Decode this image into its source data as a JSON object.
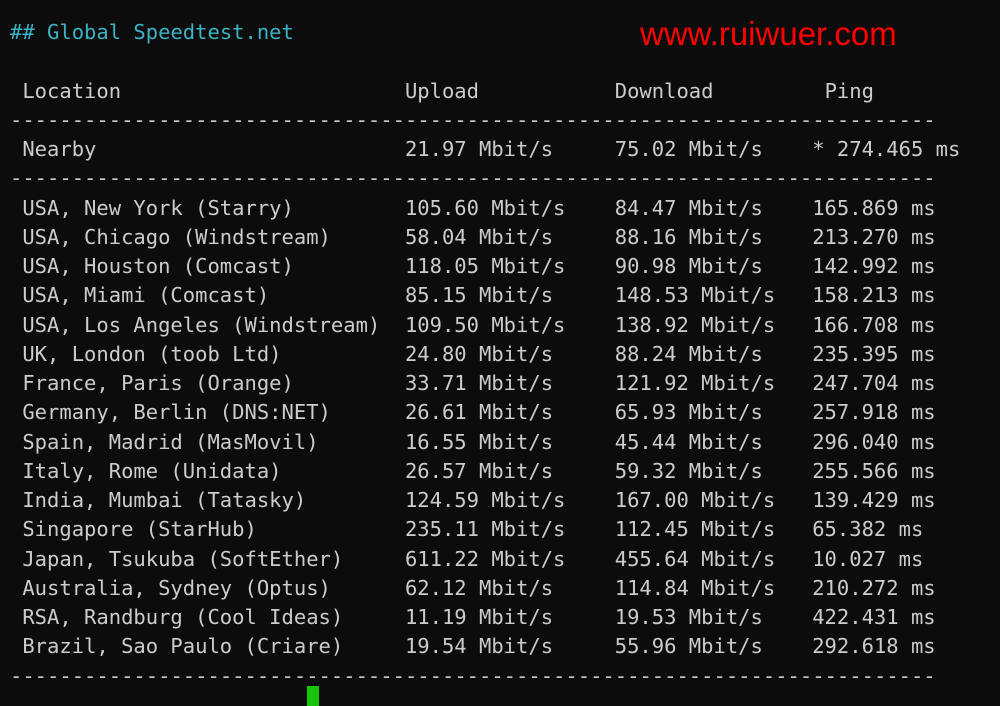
{
  "title": "## Global Speedtest.net",
  "headers": {
    "location": "Location",
    "upload": "Upload",
    "download": "Download",
    "ping": "Ping"
  },
  "separator": "---------------------------------------------------------------------------",
  "nearby": {
    "location": "Nearby",
    "upload": "21.97 Mbit/s",
    "download": "75.02 Mbit/s",
    "ping": "* 274.465 ms"
  },
  "rows": [
    {
      "location": "USA, New York (Starry)",
      "upload": "105.60 Mbit/s",
      "download": "84.47 Mbit/s",
      "ping": "165.869 ms"
    },
    {
      "location": "USA, Chicago (Windstream)",
      "upload": "58.04 Mbit/s",
      "download": "88.16 Mbit/s",
      "ping": "213.270 ms"
    },
    {
      "location": "USA, Houston (Comcast)",
      "upload": "118.05 Mbit/s",
      "download": "90.98 Mbit/s",
      "ping": "142.992 ms"
    },
    {
      "location": "USA, Miami (Comcast)",
      "upload": "85.15 Mbit/s",
      "download": "148.53 Mbit/s",
      "ping": "158.213 ms"
    },
    {
      "location": "USA, Los Angeles (Windstream)",
      "upload": "109.50 Mbit/s",
      "download": "138.92 Mbit/s",
      "ping": "166.708 ms"
    },
    {
      "location": "UK, London (toob Ltd)",
      "upload": "24.80 Mbit/s",
      "download": "88.24 Mbit/s",
      "ping": "235.395 ms"
    },
    {
      "location": "France, Paris (Orange)",
      "upload": "33.71 Mbit/s",
      "download": "121.92 Mbit/s",
      "ping": "247.704 ms"
    },
    {
      "location": "Germany, Berlin (DNS:NET)",
      "upload": "26.61 Mbit/s",
      "download": "65.93 Mbit/s",
      "ping": "257.918 ms"
    },
    {
      "location": "Spain, Madrid (MasMovil)",
      "upload": "16.55 Mbit/s",
      "download": "45.44 Mbit/s",
      "ping": "296.040 ms"
    },
    {
      "location": "Italy, Rome (Unidata)",
      "upload": "26.57 Mbit/s",
      "download": "59.32 Mbit/s",
      "ping": "255.566 ms"
    },
    {
      "location": "India, Mumbai (Tatasky)",
      "upload": "124.59 Mbit/s",
      "download": "167.00 Mbit/s",
      "ping": "139.429 ms"
    },
    {
      "location": "Singapore (StarHub)",
      "upload": "235.11 Mbit/s",
      "download": "112.45 Mbit/s",
      "ping": "65.382 ms"
    },
    {
      "location": "Japan, Tsukuba (SoftEther)",
      "upload": "611.22 Mbit/s",
      "download": "455.64 Mbit/s",
      "ping": "10.027 ms"
    },
    {
      "location": "Australia, Sydney (Optus)",
      "upload": "62.12 Mbit/s",
      "download": "114.84 Mbit/s",
      "ping": "210.272 ms"
    },
    {
      "location": "RSA, Randburg (Cool Ideas)",
      "upload": "11.19 Mbit/s",
      "download": "19.53 Mbit/s",
      "ping": "422.431 ms"
    },
    {
      "location": "Brazil, Sao Paulo (Criare)",
      "upload": "19.54 Mbit/s",
      "download": "55.96 Mbit/s",
      "ping": "292.618 ms"
    }
  ],
  "watermark": "www.ruiwuer.com",
  "colors": {
    "title": "#3ab4c4",
    "text": "#cccccc",
    "watermark": "#ff0000",
    "cursor": "#16c60c",
    "background": "#0c0c0c"
  }
}
